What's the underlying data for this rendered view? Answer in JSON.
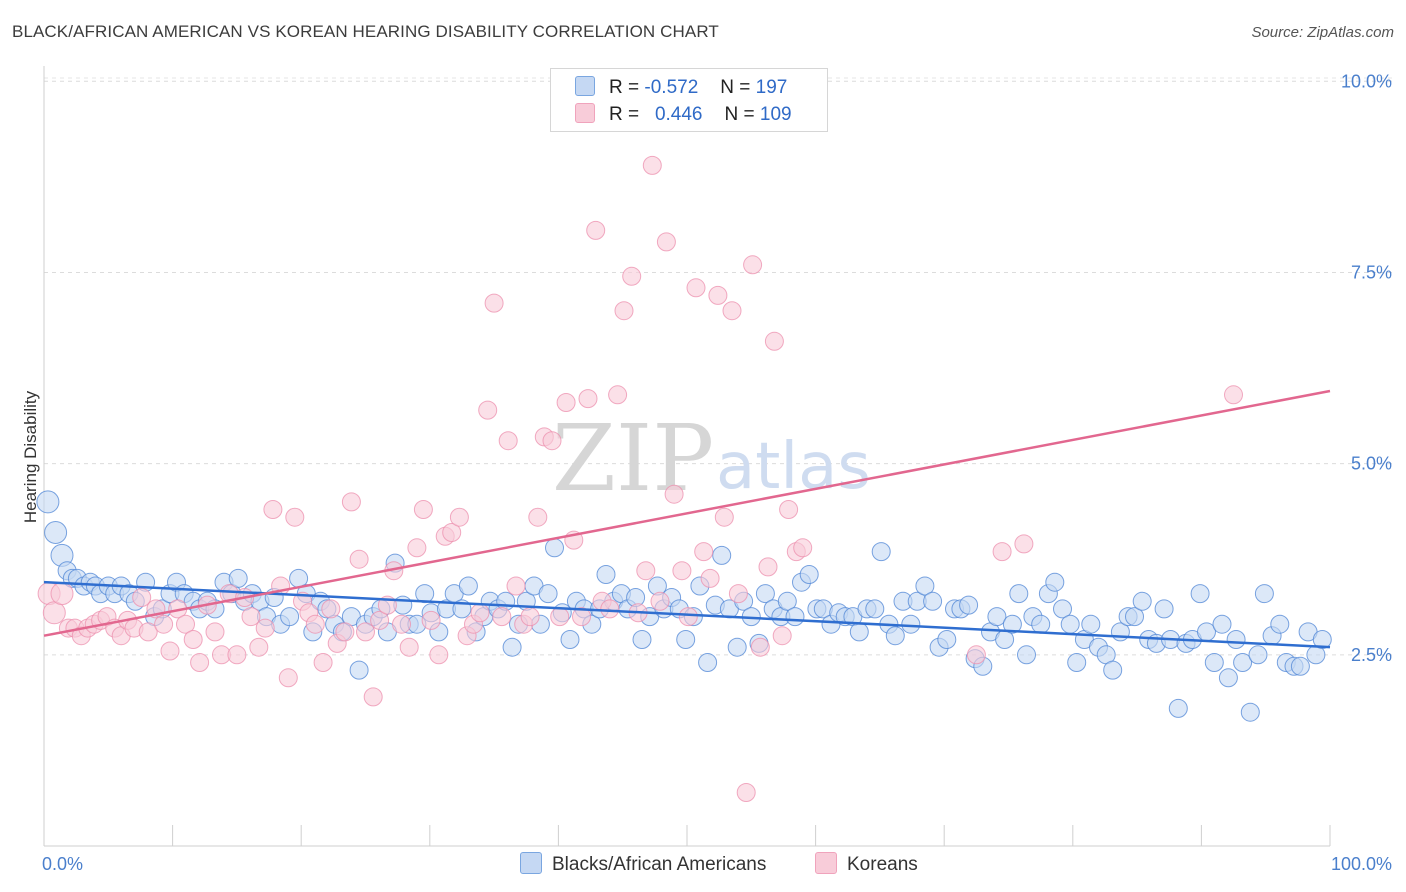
{
  "title": "BLACK/AFRICAN AMERICAN VS KOREAN HEARING DISABILITY CORRELATION CHART",
  "source": "Source: ZipAtlas.com",
  "watermark": {
    "zip": "ZIP",
    "atlas": "atlas"
  },
  "legend": {
    "rows": [
      {
        "r_label": "R =",
        "r_value": "-0.572",
        "n_label": "N =",
        "n_value": "197",
        "color": "#7aa6e0",
        "fill": "#c5d8f3"
      },
      {
        "r_label": "R =",
        "r_value": "0.446",
        "n_label": "N =",
        "n_value": "109",
        "color": "#f0a3bc",
        "fill": "#f8ccd9"
      }
    ]
  },
  "bottom_legend": [
    {
      "label": "Blacks/African Americans",
      "color": "#7aa6e0",
      "fill": "#c5d8f3"
    },
    {
      "label": "Koreans",
      "color": "#f0a3bc",
      "fill": "#f8ccd9"
    }
  ],
  "chart_data": {
    "type": "scatter",
    "title": "BLACK/AFRICAN AMERICAN VS KOREAN HEARING DISABILITY CORRELATION CHART",
    "xlabel": "",
    "ylabel": "Hearing Disability",
    "xlim": [
      0,
      100
    ],
    "ylim": [
      0,
      10.2
    ],
    "x_tick_labels": [
      "0.0%",
      "100.0%"
    ],
    "y_ticks": [
      2.5,
      5.0,
      7.5,
      10.0
    ],
    "y_tick_labels": [
      "2.5%",
      "5.0%",
      "7.5%",
      "10.0%"
    ],
    "series": [
      {
        "name": "Blacks/African Americans",
        "color": "#4f86d6",
        "fill": "#c5d8f3",
        "trend": {
          "x": [
            0,
            100
          ],
          "y": [
            3.45,
            2.6
          ],
          "color": "#2f6ed0"
        },
        "points": [
          [
            0.3,
            4.5
          ],
          [
            0.9,
            4.1
          ],
          [
            1.4,
            3.8
          ],
          [
            1.8,
            3.6
          ],
          [
            2.2,
            3.5
          ],
          [
            2.6,
            3.5
          ],
          [
            3.1,
            3.4
          ],
          [
            3.6,
            3.45
          ],
          [
            4.0,
            3.4
          ],
          [
            4.4,
            3.3
          ],
          [
            5.0,
            3.4
          ],
          [
            5.5,
            3.3
          ],
          [
            6.0,
            3.4
          ],
          [
            6.6,
            3.3
          ],
          [
            7.1,
            3.2
          ],
          [
            7.9,
            3.45
          ],
          [
            8.6,
            3.0
          ],
          [
            9.2,
            3.1
          ],
          [
            9.8,
            3.3
          ],
          [
            10.3,
            3.45
          ],
          [
            10.9,
            3.3
          ],
          [
            11.6,
            3.2
          ],
          [
            12.1,
            3.1
          ],
          [
            12.7,
            3.2
          ],
          [
            13.3,
            3.1
          ],
          [
            14.0,
            3.45
          ],
          [
            14.6,
            3.3
          ],
          [
            15.1,
            3.5
          ],
          [
            15.6,
            3.2
          ],
          [
            16.2,
            3.3
          ],
          [
            16.8,
            3.2
          ],
          [
            17.3,
            3.0
          ],
          [
            17.9,
            3.25
          ],
          [
            18.4,
            2.9
          ],
          [
            19.1,
            3.0
          ],
          [
            19.8,
            3.5
          ],
          [
            20.4,
            3.3
          ],
          [
            20.9,
            2.8
          ],
          [
            21.5,
            3.2
          ],
          [
            22.0,
            3.1
          ],
          [
            22.6,
            2.9
          ],
          [
            23.2,
            2.8
          ],
          [
            23.9,
            3.0
          ],
          [
            24.5,
            2.3
          ],
          [
            25.0,
            2.9
          ],
          [
            25.6,
            3.0
          ],
          [
            26.2,
            3.1
          ],
          [
            26.7,
            2.8
          ],
          [
            27.3,
            3.7
          ],
          [
            27.9,
            3.15
          ],
          [
            28.4,
            2.9
          ],
          [
            29.0,
            2.9
          ],
          [
            29.6,
            3.3
          ],
          [
            30.1,
            3.05
          ],
          [
            30.7,
            2.8
          ],
          [
            31.3,
            3.1
          ],
          [
            31.9,
            3.3
          ],
          [
            32.5,
            3.1
          ],
          [
            33.0,
            3.4
          ],
          [
            33.6,
            2.8
          ],
          [
            34.2,
            3.0
          ],
          [
            34.7,
            3.2
          ],
          [
            35.3,
            3.1
          ],
          [
            35.9,
            3.2
          ],
          [
            36.4,
            2.6
          ],
          [
            36.9,
            2.9
          ],
          [
            37.5,
            3.2
          ],
          [
            38.1,
            3.4
          ],
          [
            38.6,
            2.9
          ],
          [
            39.2,
            3.3
          ],
          [
            39.7,
            3.9
          ],
          [
            40.3,
            3.05
          ],
          [
            40.9,
            2.7
          ],
          [
            41.4,
            3.2
          ],
          [
            42.0,
            3.1
          ],
          [
            42.6,
            2.9
          ],
          [
            43.2,
            3.1
          ],
          [
            43.7,
            3.55
          ],
          [
            44.3,
            3.2
          ],
          [
            44.9,
            3.3
          ],
          [
            45.4,
            3.1
          ],
          [
            46.0,
            3.25
          ],
          [
            46.5,
            2.7
          ],
          [
            47.1,
            3.0
          ],
          [
            47.7,
            3.4
          ],
          [
            48.2,
            3.1
          ],
          [
            48.8,
            3.25
          ],
          [
            49.4,
            3.1
          ],
          [
            49.9,
            2.7
          ],
          [
            50.5,
            3.0
          ],
          [
            51.0,
            3.4
          ],
          [
            51.6,
            2.4
          ],
          [
            52.2,
            3.15
          ],
          [
            52.7,
            3.8
          ],
          [
            53.3,
            3.1
          ],
          [
            53.9,
            2.6
          ],
          [
            54.4,
            3.2
          ],
          [
            55.0,
            3.0
          ],
          [
            55.6,
            2.65
          ],
          [
            56.1,
            3.3
          ],
          [
            56.7,
            3.1
          ],
          [
            57.3,
            3.0
          ],
          [
            57.8,
            3.2
          ],
          [
            58.4,
            3.0
          ],
          [
            58.9,
            3.45
          ],
          [
            59.5,
            3.55
          ],
          [
            60.1,
            3.1
          ],
          [
            60.6,
            3.1
          ],
          [
            61.2,
            2.9
          ],
          [
            61.8,
            3.05
          ],
          [
            62.3,
            3.0
          ],
          [
            62.9,
            3.0
          ],
          [
            63.4,
            2.8
          ],
          [
            64.0,
            3.1
          ],
          [
            64.6,
            3.1
          ],
          [
            65.1,
            3.85
          ],
          [
            65.7,
            2.9
          ],
          [
            66.2,
            2.75
          ],
          [
            66.8,
            3.2
          ],
          [
            67.4,
            2.9
          ],
          [
            67.9,
            3.2
          ],
          [
            68.5,
            3.4
          ],
          [
            69.1,
            3.2
          ],
          [
            69.6,
            2.6
          ],
          [
            70.2,
            2.7
          ],
          [
            70.8,
            3.1
          ],
          [
            71.3,
            3.1
          ],
          [
            71.9,
            3.15
          ],
          [
            72.4,
            2.45
          ],
          [
            73.0,
            2.35
          ],
          [
            73.6,
            2.8
          ],
          [
            74.1,
            3.0
          ],
          [
            74.7,
            2.7
          ],
          [
            75.3,
            2.9
          ],
          [
            75.8,
            3.3
          ],
          [
            76.4,
            2.5
          ],
          [
            76.9,
            3.0
          ],
          [
            77.5,
            2.9
          ],
          [
            78.1,
            3.3
          ],
          [
            78.6,
            3.45
          ],
          [
            79.2,
            3.1
          ],
          [
            79.8,
            2.9
          ],
          [
            80.3,
            2.4
          ],
          [
            80.9,
            2.7
          ],
          [
            81.4,
            2.9
          ],
          [
            82.0,
            2.6
          ],
          [
            82.6,
            2.5
          ],
          [
            83.1,
            2.3
          ],
          [
            83.7,
            2.8
          ],
          [
            84.3,
            3.0
          ],
          [
            84.8,
            3.0
          ],
          [
            85.4,
            3.2
          ],
          [
            85.9,
            2.7
          ],
          [
            86.5,
            2.65
          ],
          [
            87.1,
            3.1
          ],
          [
            87.6,
            2.7
          ],
          [
            88.2,
            1.8
          ],
          [
            88.8,
            2.65
          ],
          [
            89.3,
            2.7
          ],
          [
            89.9,
            3.3
          ],
          [
            90.4,
            2.8
          ],
          [
            91.0,
            2.4
          ],
          [
            91.6,
            2.9
          ],
          [
            92.1,
            2.2
          ],
          [
            92.7,
            2.7
          ],
          [
            93.2,
            2.4
          ],
          [
            93.8,
            1.75
          ],
          [
            94.4,
            2.5
          ],
          [
            94.9,
            3.3
          ],
          [
            95.5,
            2.75
          ],
          [
            96.1,
            2.9
          ],
          [
            96.6,
            2.4
          ],
          [
            97.2,
            2.35
          ],
          [
            97.7,
            2.35
          ],
          [
            98.3,
            2.8
          ],
          [
            98.9,
            2.5
          ],
          [
            99.4,
            2.7
          ]
        ]
      },
      {
        "name": "Koreans",
        "color": "#ec8fae",
        "fill": "#f8ccd9",
        "trend": {
          "x": [
            0,
            100
          ],
          "y": [
            2.75,
            5.95
          ],
          "color": "#e2678f"
        },
        "points": [
          [
            0.4,
            3.3
          ],
          [
            0.8,
            3.05
          ],
          [
            1.4,
            3.3
          ],
          [
            1.9,
            2.85
          ],
          [
            2.4,
            2.85
          ],
          [
            2.9,
            2.75
          ],
          [
            3.4,
            2.85
          ],
          [
            3.9,
            2.9
          ],
          [
            4.4,
            2.95
          ],
          [
            4.9,
            3.0
          ],
          [
            5.5,
            2.85
          ],
          [
            6.0,
            2.75
          ],
          [
            6.5,
            2.95
          ],
          [
            7.0,
            2.85
          ],
          [
            7.6,
            3.25
          ],
          [
            8.1,
            2.8
          ],
          [
            8.7,
            3.1
          ],
          [
            9.3,
            2.9
          ],
          [
            9.8,
            2.55
          ],
          [
            10.4,
            3.1
          ],
          [
            11.0,
            2.9
          ],
          [
            11.6,
            2.7
          ],
          [
            12.1,
            2.4
          ],
          [
            12.7,
            3.15
          ],
          [
            13.3,
            2.8
          ],
          [
            13.8,
            2.5
          ],
          [
            14.4,
            3.3
          ],
          [
            15.0,
            2.5
          ],
          [
            15.6,
            3.25
          ],
          [
            16.1,
            3.0
          ],
          [
            16.7,
            2.6
          ],
          [
            17.2,
            2.85
          ],
          [
            17.8,
            4.4
          ],
          [
            18.4,
            3.4
          ],
          [
            19.0,
            2.2
          ],
          [
            19.5,
            4.3
          ],
          [
            20.1,
            3.2
          ],
          [
            20.6,
            3.05
          ],
          [
            21.1,
            2.9
          ],
          [
            21.7,
            2.4
          ],
          [
            22.3,
            3.1
          ],
          [
            22.8,
            2.65
          ],
          [
            23.4,
            2.8
          ],
          [
            23.9,
            4.5
          ],
          [
            24.5,
            3.75
          ],
          [
            25.0,
            2.8
          ],
          [
            25.6,
            1.95
          ],
          [
            26.1,
            2.95
          ],
          [
            26.7,
            3.15
          ],
          [
            27.2,
            3.6
          ],
          [
            27.8,
            2.9
          ],
          [
            28.4,
            2.6
          ],
          [
            29.0,
            3.9
          ],
          [
            29.5,
            4.4
          ],
          [
            30.1,
            2.95
          ],
          [
            30.7,
            2.5
          ],
          [
            31.2,
            4.05
          ],
          [
            31.7,
            4.1
          ],
          [
            32.3,
            4.3
          ],
          [
            32.9,
            2.75
          ],
          [
            33.4,
            2.9
          ],
          [
            33.9,
            3.05
          ],
          [
            34.5,
            5.7
          ],
          [
            35.0,
            7.1
          ],
          [
            35.6,
            3.0
          ],
          [
            36.1,
            5.3
          ],
          [
            36.7,
            3.4
          ],
          [
            37.3,
            2.9
          ],
          [
            37.8,
            3.0
          ],
          [
            38.4,
            4.3
          ],
          [
            38.9,
            5.35
          ],
          [
            39.5,
            5.3
          ],
          [
            40.1,
            3.0
          ],
          [
            40.6,
            5.8
          ],
          [
            41.2,
            4.0
          ],
          [
            41.8,
            3.0
          ],
          [
            42.3,
            5.85
          ],
          [
            42.9,
            8.05
          ],
          [
            43.4,
            3.2
          ],
          [
            44.0,
            3.1
          ],
          [
            44.6,
            5.9
          ],
          [
            45.1,
            7.0
          ],
          [
            45.7,
            7.45
          ],
          [
            46.2,
            3.05
          ],
          [
            46.8,
            3.6
          ],
          [
            47.3,
            8.9
          ],
          [
            47.9,
            3.2
          ],
          [
            48.4,
            7.9
          ],
          [
            49.0,
            4.6
          ],
          [
            49.6,
            3.6
          ],
          [
            50.1,
            3.0
          ],
          [
            50.7,
            7.3
          ],
          [
            51.3,
            3.85
          ],
          [
            51.8,
            3.5
          ],
          [
            52.4,
            7.2
          ],
          [
            52.9,
            4.3
          ],
          [
            53.5,
            7.0
          ],
          [
            54.0,
            3.3
          ],
          [
            54.6,
            0.7
          ],
          [
            55.1,
            7.6
          ],
          [
            55.7,
            2.6
          ],
          [
            56.3,
            3.65
          ],
          [
            56.8,
            6.6
          ],
          [
            57.4,
            2.75
          ],
          [
            57.9,
            4.4
          ],
          [
            58.5,
            3.85
          ],
          [
            59.0,
            3.9
          ],
          [
            72.5,
            2.5
          ],
          [
            74.5,
            3.85
          ],
          [
            76.2,
            3.95
          ],
          [
            92.5,
            5.9
          ]
        ]
      }
    ]
  }
}
